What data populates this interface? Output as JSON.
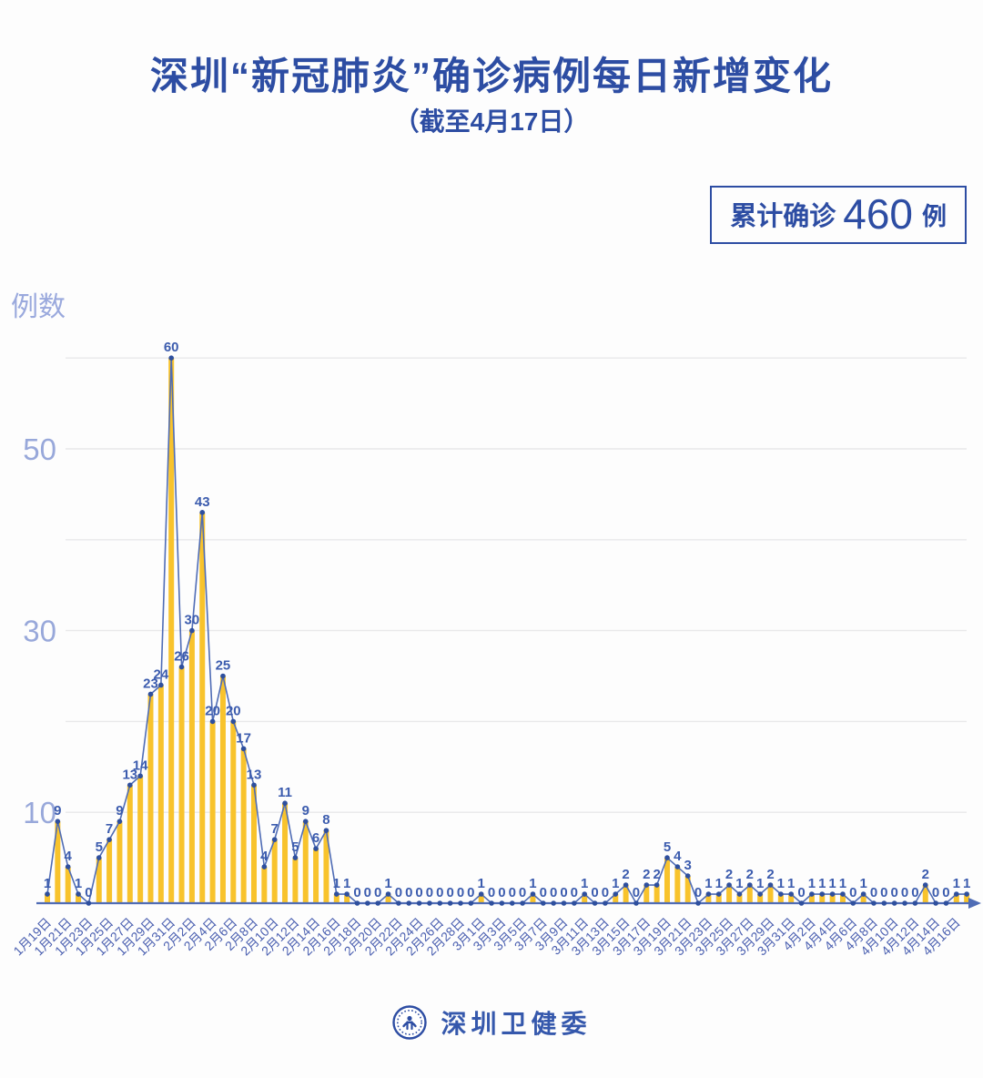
{
  "header": {
    "title": "深圳“新冠肺炎”确诊病例每日新增变化",
    "subtitle": "（截至4月17日）",
    "badge": {
      "label": "累计确诊",
      "value": "460",
      "unit": "例"
    }
  },
  "footer": {
    "brand": "深圳卫健委"
  },
  "chart_data": {
    "type": "bar",
    "overlay": "line",
    "title": "深圳“新冠肺炎”确诊病例每日新增变化",
    "ylabel": "例数",
    "xlabel": "",
    "ylim": [
      0,
      62
    ],
    "yticks_labeled": [
      10,
      30,
      50
    ],
    "grid_values": [
      10,
      20,
      30,
      40,
      50,
      60
    ],
    "x_label_step": 2,
    "legend": "none",
    "show_value_labels": true,
    "categories": [
      "1月19日",
      "1月20日",
      "1月21日",
      "1月22日",
      "1月23日",
      "1月24日",
      "1月25日",
      "1月26日",
      "1月27日",
      "1月28日",
      "1月29日",
      "1月30日",
      "1月31日",
      "2月1日",
      "2月2日",
      "2月3日",
      "2月4日",
      "2月5日",
      "2月6日",
      "2月7日",
      "2月8日",
      "2月9日",
      "2月10日",
      "2月11日",
      "2月12日",
      "2月13日",
      "2月14日",
      "2月15日",
      "2月16日",
      "2月17日",
      "2月18日",
      "2月19日",
      "2月20日",
      "2月21日",
      "2月22日",
      "2月23日",
      "2月24日",
      "2月25日",
      "2月26日",
      "2月27日",
      "2月28日",
      "2月29日",
      "3月1日",
      "3月2日",
      "3月3日",
      "3月4日",
      "3月5日",
      "3月6日",
      "3月7日",
      "3月8日",
      "3月9日",
      "3月10日",
      "3月11日",
      "3月12日",
      "3月13日",
      "3月14日",
      "3月15日",
      "3月16日",
      "3月17日",
      "3月18日",
      "3月19日",
      "3月20日",
      "3月21日",
      "3月22日",
      "3月23日",
      "3月24日",
      "3月25日",
      "3月26日",
      "3月27日",
      "3月28日",
      "3月29日",
      "3月30日",
      "3月31日",
      "4月1日",
      "4月2日",
      "4月3日",
      "4月4日",
      "4月5日",
      "4月6日",
      "4月7日",
      "4月8日",
      "4月9日",
      "4月10日",
      "4月11日",
      "4月12日",
      "4月13日",
      "4月14日",
      "4月15日",
      "4月16日",
      "4月17日"
    ],
    "values": [
      1,
      9,
      4,
      1,
      0,
      5,
      7,
      9,
      13,
      14,
      23,
      24,
      60,
      26,
      30,
      43,
      20,
      25,
      20,
      17,
      13,
      4,
      7,
      11,
      5,
      9,
      6,
      8,
      1,
      1,
      0,
      0,
      0,
      1,
      0,
      0,
      0,
      0,
      0,
      0,
      0,
      0,
      1,
      0,
      0,
      0,
      0,
      1,
      0,
      0,
      0,
      0,
      1,
      0,
      0,
      1,
      2,
      0,
      2,
      2,
      5,
      4,
      3,
      0,
      1,
      1,
      2,
      1,
      2,
      1,
      2,
      1,
      1,
      0,
      1,
      1,
      1,
      1,
      0,
      1,
      0,
      0,
      0,
      0,
      0,
      2,
      0,
      0,
      1,
      1
    ],
    "total": 460,
    "colors": {
      "bar": "#f8c32c",
      "line": "#4f6cb5",
      "marker": "#2e4f9e",
      "value_label": "#3c5cae",
      "y_tick": "#98a8da",
      "gridline": "#e8e8ea",
      "x_tick": "#4a5fb0",
      "axis": "#4f6cb5",
      "accent": "#2d4da3"
    }
  }
}
